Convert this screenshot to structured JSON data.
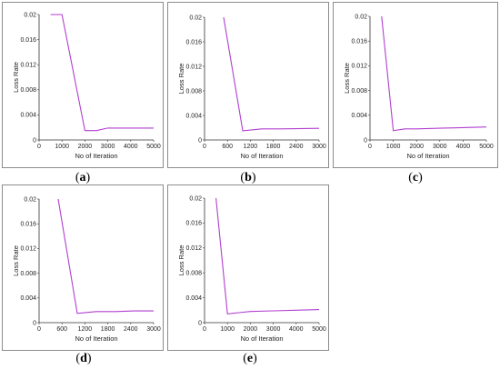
{
  "chart_data": [
    {
      "type": "line",
      "panel": "a",
      "caption_pre": "(",
      "caption_letter": "a",
      "caption_post": ")",
      "xlabel": "No of Iteration",
      "ylabel": "Loss Rate",
      "xlim": [
        0,
        5000
      ],
      "ylim": [
        0,
        0.02
      ],
      "xticks": [
        "0",
        "1000",
        "2000",
        "3000",
        "4000",
        "5000"
      ],
      "xtick_values": [
        0,
        1000,
        2000,
        3000,
        4000,
        5000
      ],
      "yticks": [
        "0",
        "0.004",
        "0.008",
        "0.012",
        "0.016",
        "0.02"
      ],
      "ytick_values": [
        0,
        0.004,
        0.008,
        0.012,
        0.016,
        0.02
      ],
      "x": [
        500,
        1000,
        2000,
        2500,
        3000,
        5000
      ],
      "y": [
        0.02,
        0.02,
        0.0015,
        0.0015,
        0.0019,
        0.0019
      ],
      "color": "#b13fcf"
    },
    {
      "type": "line",
      "panel": "b",
      "caption_pre": "(",
      "caption_letter": "b",
      "caption_post": ")",
      "xlabel": "No of Iteration",
      "ylabel": "Loss Rate",
      "xlim": [
        0,
        3000
      ],
      "ylim": [
        0,
        0.02
      ],
      "xticks": [
        "0",
        "600",
        "1200",
        "1800",
        "2400",
        "3000"
      ],
      "xtick_values": [
        0,
        600,
        1200,
        1800,
        2400,
        3000
      ],
      "yticks": [
        "0",
        "0.004",
        "0.008",
        "0.012",
        "0.016",
        "0.02"
      ],
      "ytick_values": [
        0,
        0.004,
        0.008,
        0.012,
        0.016,
        0.02
      ],
      "x": [
        500,
        1000,
        1500,
        2000,
        3000
      ],
      "y": [
        0.02,
        0.0015,
        0.0018,
        0.0018,
        0.0019
      ],
      "color": "#b13fcf"
    },
    {
      "type": "line",
      "panel": "c",
      "caption_pre": "(",
      "caption_letter": "c",
      "caption_post": ")",
      "xlabel": "No of Iteration",
      "ylabel": "Loss Rate",
      "xlim": [
        0,
        5000
      ],
      "ylim": [
        0,
        0.02
      ],
      "xticks": [
        "0",
        "1000",
        "2000",
        "3000",
        "4000",
        "5000"
      ],
      "xtick_values": [
        0,
        1000,
        2000,
        3000,
        4000,
        5000
      ],
      "yticks": [
        "0",
        "0.004",
        "0.008",
        "0.012",
        "0.016",
        "0.02"
      ],
      "ytick_values": [
        0,
        0.004,
        0.008,
        0.012,
        0.016,
        0.02
      ],
      "x": [
        500,
        1000,
        1500,
        2000,
        3000,
        4000,
        5000
      ],
      "y": [
        0.02,
        0.0015,
        0.0018,
        0.0018,
        0.0019,
        0.002,
        0.0021
      ],
      "color": "#b13fcf"
    },
    {
      "type": "line",
      "panel": "d",
      "caption_pre": "(",
      "caption_letter": "d",
      "caption_post": ")",
      "xlabel": "No of Iteration",
      "ylabel": "Loss Rate",
      "xlim": [
        0,
        3000
      ],
      "ylim": [
        0,
        0.02
      ],
      "xticks": [
        "0",
        "600",
        "1200",
        "1800",
        "2400",
        "3000"
      ],
      "xtick_values": [
        0,
        600,
        1200,
        1800,
        2400,
        3000
      ],
      "yticks": [
        "0",
        "0.004",
        "0.008",
        "0.012",
        "0.016",
        "0.02"
      ],
      "ytick_values": [
        0,
        0.004,
        0.008,
        0.012,
        0.016,
        0.02
      ],
      "x": [
        500,
        1000,
        1500,
        2000,
        2500,
        3000
      ],
      "y": [
        0.02,
        0.0015,
        0.0018,
        0.0018,
        0.0019,
        0.0019
      ],
      "color": "#b13fcf"
    },
    {
      "type": "line",
      "panel": "e",
      "caption_pre": "(",
      "caption_letter": "e",
      "caption_post": ")",
      "xlabel": "No of Iteration",
      "ylabel": "Loss Rate",
      "xlim": [
        0,
        5000
      ],
      "ylim": [
        0,
        0.02
      ],
      "xticks": [
        "0",
        "1000",
        "2000",
        "3000",
        "4000",
        "5000"
      ],
      "xtick_values": [
        0,
        1000,
        2000,
        3000,
        4000,
        5000
      ],
      "yticks": [
        "0",
        "0.004",
        "0.008",
        "0.012",
        "0.016",
        "0.02"
      ],
      "ytick_values": [
        0,
        0.004,
        0.008,
        0.012,
        0.016,
        0.02
      ],
      "x": [
        500,
        1000,
        1500,
        2000,
        3000,
        4000,
        5000
      ],
      "y": [
        0.02,
        0.0014,
        0.0016,
        0.0018,
        0.0019,
        0.002,
        0.0021
      ],
      "color": "#b13fcf"
    }
  ]
}
